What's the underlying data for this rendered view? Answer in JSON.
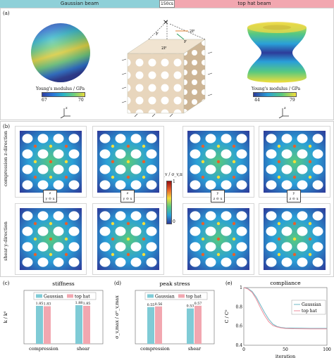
{
  "header": {
    "left_label": "Gaussian beam",
    "right_label": "top hat beam",
    "center_badge": "150cs",
    "colors": {
      "gaussian": "#8fd0d8",
      "tophat": "#f2a7b0"
    }
  },
  "panel_a": {
    "label": "(a)",
    "sphere_left": {
      "colorbar_title": "Young's modulus / GPa",
      "min": "67",
      "max": "70"
    },
    "sphere_right": {
      "colorbar_title": "Young's modulus / GPa",
      "min": "44",
      "max": "79"
    },
    "axes_labels": {
      "z": "z",
      "x": "x",
      "y": "y"
    },
    "load_labels": {
      "f_top": "2F",
      "f_side": "F",
      "f_bottom": "2F",
      "f_left": "F"
    }
  },
  "panel_b": {
    "label": "(b)",
    "row1_label": "compression z-direction",
    "row2_label": "shear y-direction",
    "colorbar_title": "σ_v / σ_v,max",
    "colorbar_max": "1",
    "colorbar_min": "0",
    "axis_icons": [
      {
        "top": "z",
        "mid": "y",
        "right": "x"
      },
      {
        "top": "z",
        "mid": "y",
        "right": "x"
      },
      {
        "top": "y",
        "mid": "z",
        "right": "x"
      },
      {
        "top": "y",
        "mid": "z",
        "right": "x"
      }
    ]
  },
  "panel_c": {
    "label": "(c)",
    "chart_data": {
      "type": "bar",
      "title": "stiffness",
      "ylabel": "k / k⁰",
      "categories": [
        "compression",
        "shear"
      ],
      "series": [
        {
          "name": "Gaussian",
          "values": [
            1.85,
            1.88
          ],
          "color": "#7fcbd6"
        },
        {
          "name": "top hat",
          "values": [
            1.83,
            1.85
          ],
          "color": "#f2a7b0"
        }
      ],
      "ylim": [
        0,
        2.6
      ],
      "data_labels": [
        "1.85",
        "1.83",
        "1.88",
        "1.85"
      ]
    }
  },
  "panel_d": {
    "label": "(d)",
    "chart_data": {
      "type": "bar",
      "title": "peak stress",
      "ylabel": "σ_v,max / σ⁰_v,max",
      "categories": [
        "compression",
        "shear"
      ],
      "series": [
        {
          "name": "Gaussian",
          "values": [
            0.55,
            0.53
          ],
          "color": "#7fcbd6"
        },
        {
          "name": "top hat",
          "values": [
            0.56,
            0.57
          ],
          "color": "#f2a7b0"
        }
      ],
      "ylim": [
        0,
        0.8
      ],
      "data_labels": [
        "0.55",
        "0.56",
        "0.53",
        "0.57"
      ]
    }
  },
  "panel_e": {
    "label": "(e)",
    "chart_data": {
      "type": "line",
      "title": "compliance",
      "xlabel": "iteration",
      "ylabel": "C / C⁰",
      "xlim": [
        0,
        100
      ],
      "ylim": [
        0.4,
        1.0
      ],
      "xticks": [
        "0",
        "50",
        "100"
      ],
      "yticks": [
        "0.4",
        "0.6",
        "0.8",
        "1"
      ],
      "series": [
        {
          "name": "Gaussian",
          "color": "#6fb7c4",
          "x": [
            0,
            5,
            10,
            15,
            20,
            25,
            30,
            35,
            40,
            45,
            50,
            60,
            70,
            80,
            90,
            100
          ],
          "y": [
            1.0,
            0.99,
            0.96,
            0.9,
            0.82,
            0.74,
            0.67,
            0.62,
            0.595,
            0.585,
            0.58,
            0.578,
            0.577,
            0.576,
            0.576,
            0.576
          ]
        },
        {
          "name": "top hat",
          "color": "#ee8e9c",
          "x": [
            0,
            5,
            10,
            15,
            20,
            25,
            30,
            35,
            40,
            45,
            50,
            60,
            70,
            80,
            90,
            100
          ],
          "y": [
            1.0,
            0.985,
            0.95,
            0.88,
            0.79,
            0.71,
            0.645,
            0.605,
            0.59,
            0.58,
            0.575,
            0.572,
            0.571,
            0.57,
            0.57,
            0.57
          ]
        }
      ]
    }
  }
}
